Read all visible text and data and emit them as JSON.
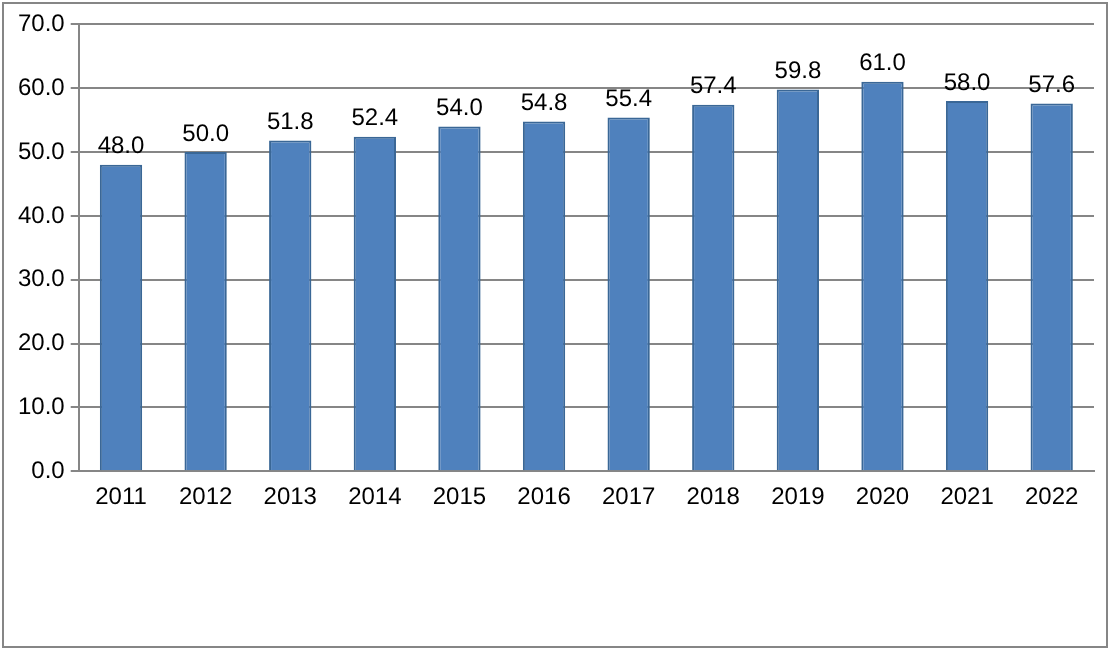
{
  "chart_data": {
    "type": "bar",
    "categories": [
      "2011",
      "2012",
      "2013",
      "2014",
      "2015",
      "2016",
      "2017",
      "2018",
      "2019",
      "2020",
      "2021",
      "2022"
    ],
    "values": [
      48.0,
      50.0,
      51.8,
      52.4,
      54.0,
      54.8,
      55.4,
      57.4,
      59.8,
      61.0,
      58.0,
      57.6
    ],
    "value_labels": [
      "48.0",
      "50.0",
      "51.8",
      "52.4",
      "54.0",
      "54.8",
      "55.4",
      "57.4",
      "59.8",
      "61.0",
      "58.0",
      "57.6"
    ],
    "color": "#4f81bd",
    "ylim": [
      0,
      70
    ],
    "yticks": [
      {
        "value": 0,
        "label": "0.0"
      },
      {
        "value": 10,
        "label": "10.0"
      },
      {
        "value": 20,
        "label": "20.0"
      },
      {
        "value": 30,
        "label": "30.0"
      },
      {
        "value": 40,
        "label": "40.0"
      },
      {
        "value": 50,
        "label": "50.0"
      },
      {
        "value": 60,
        "label": "60.0"
      },
      {
        "value": 70,
        "label": "70.0"
      }
    ],
    "grid": "y",
    "legend": false
  }
}
